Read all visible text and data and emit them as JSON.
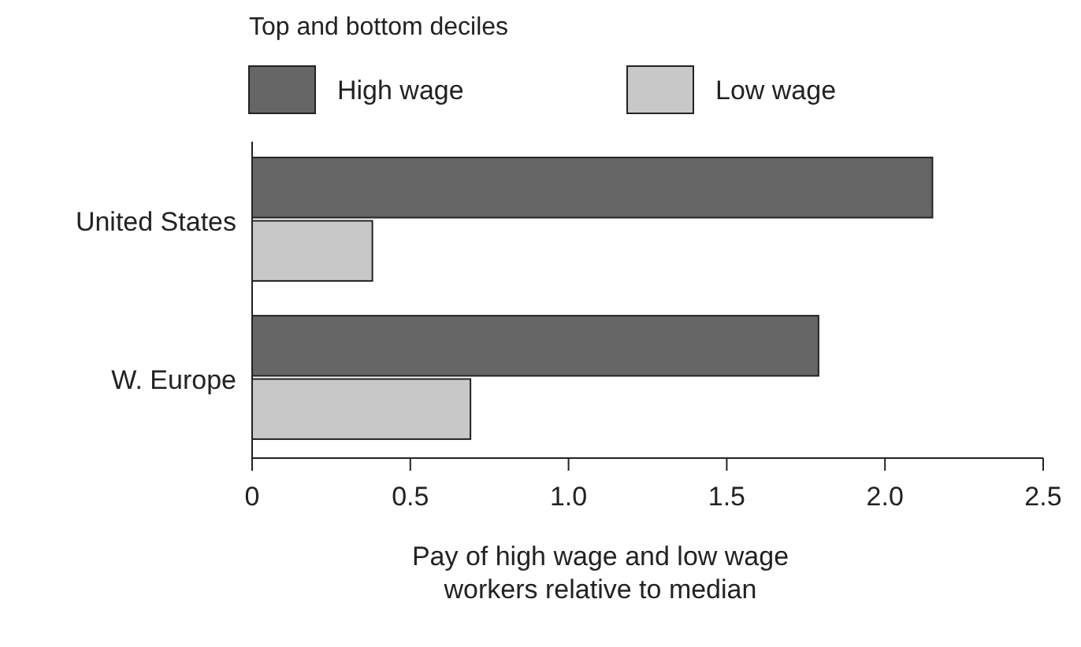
{
  "chart_data": {
    "type": "bar",
    "orientation": "horizontal",
    "legend_title": "Top and bottom deciles",
    "legend": "top left",
    "categories": [
      "United States",
      "W. Europe"
    ],
    "series": [
      {
        "name": "High wage",
        "color": "#666666",
        "values": [
          2.15,
          1.79
        ]
      },
      {
        "name": "Low wage",
        "color": "#c8c8c8",
        "values": [
          0.38,
          0.69
        ]
      }
    ],
    "xlim": [
      0,
      2.5
    ],
    "xticks": [
      0,
      0.5,
      {
        "value": 1,
        "label": "1.0"
      },
      1.5,
      {
        "value": 2,
        "label": "2.0"
      },
      2.5
    ],
    "xlabel": "Pay of high wage and low wage\nworkers relative to median",
    "grid": false
  }
}
